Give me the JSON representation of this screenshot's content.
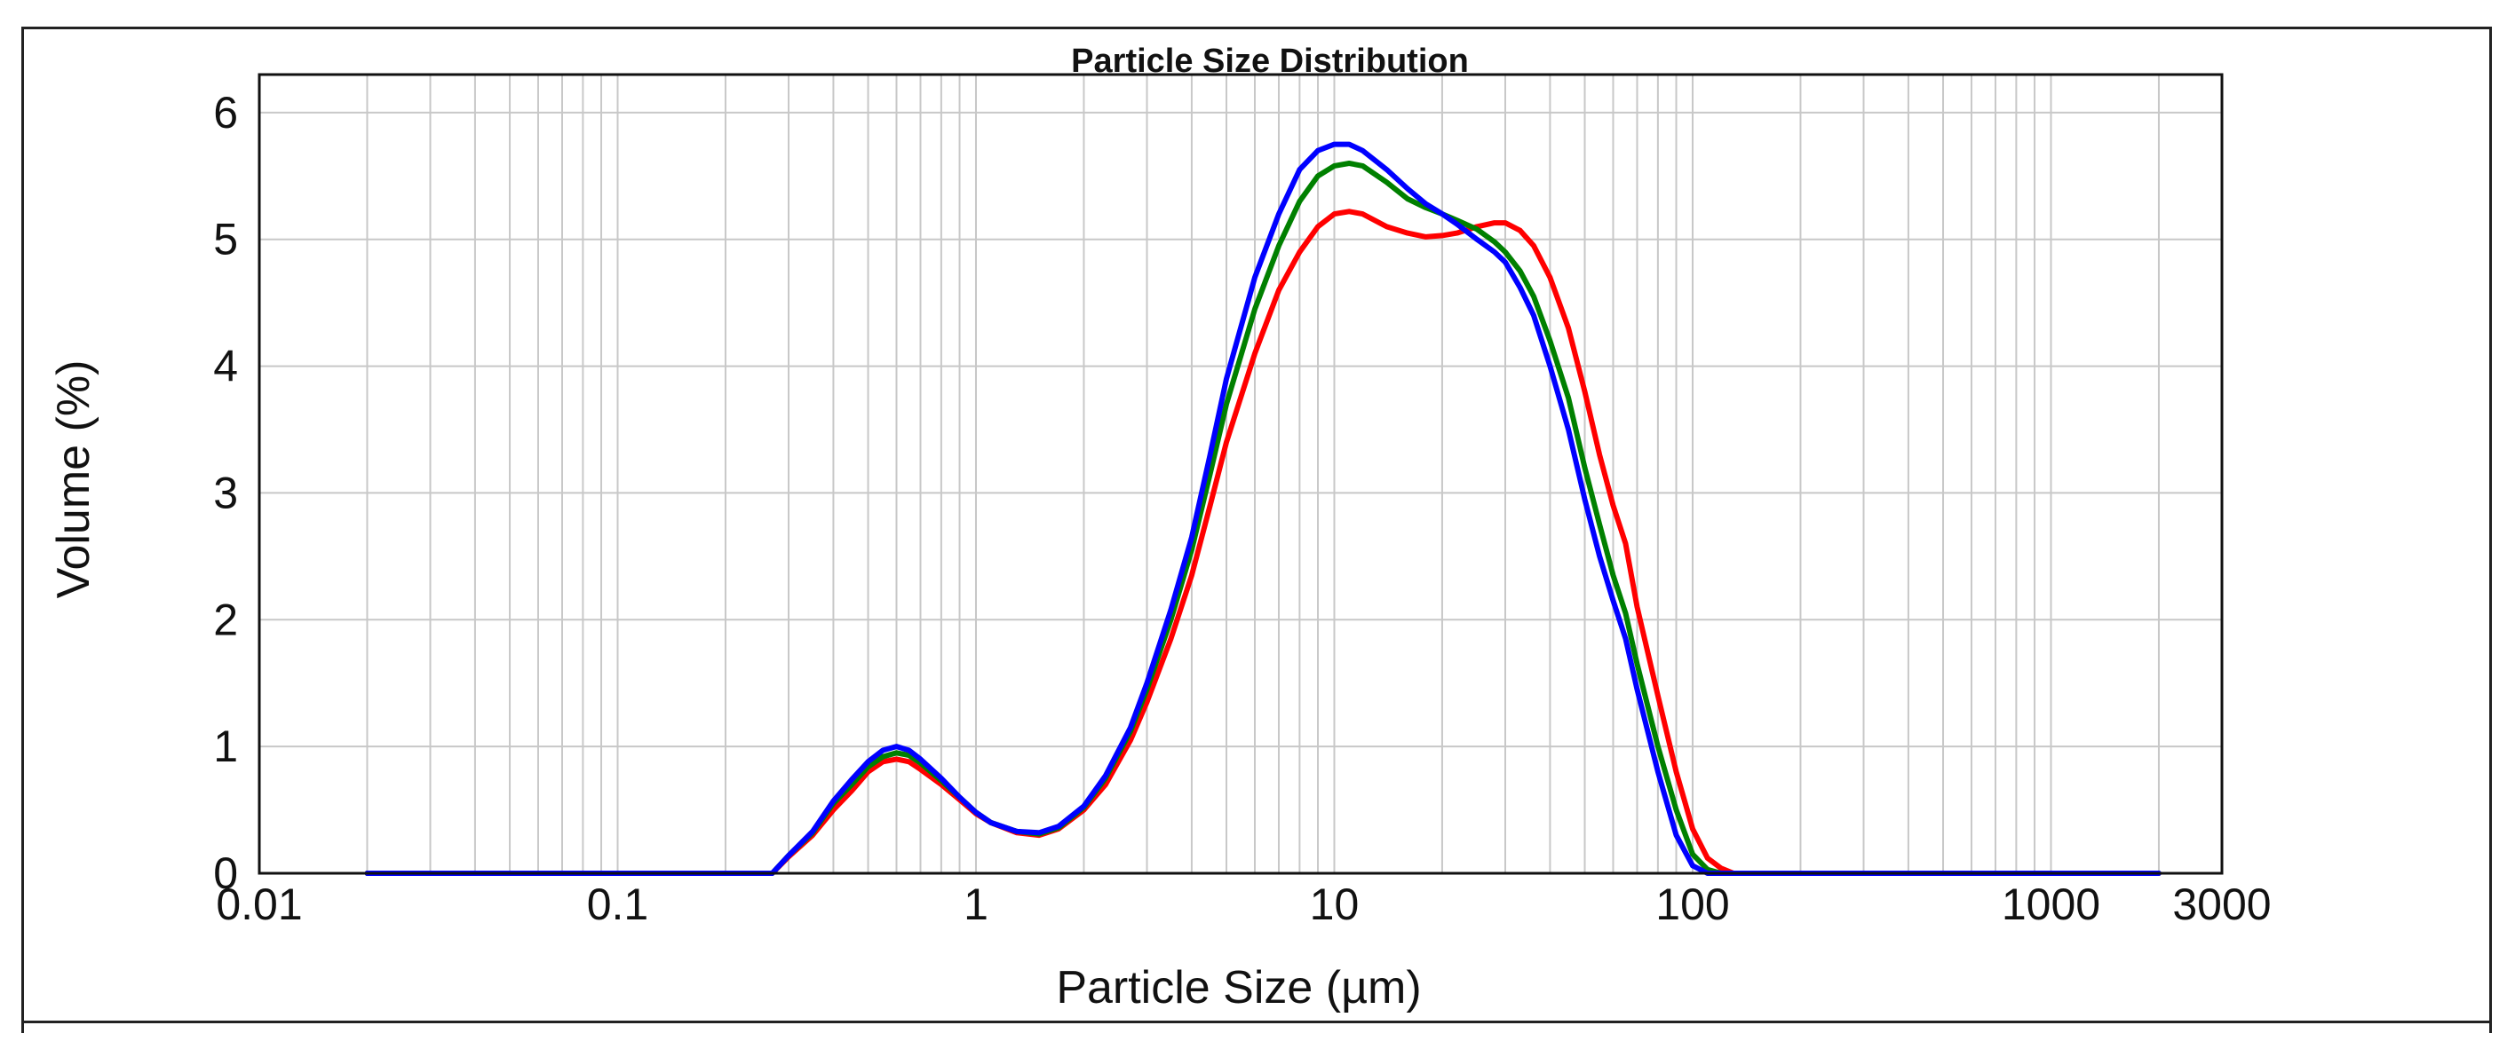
{
  "chart_data": {
    "type": "line",
    "title": "Particle Size Distribution",
    "xlabel": "Particle Size (µm)",
    "ylabel": "Volume (%)",
    "xscale": "log",
    "xlim": [
      0.01,
      3000
    ],
    "ylim": [
      0,
      6.3
    ],
    "x_ticks": [
      0.01,
      0.1,
      1,
      10,
      100,
      1000,
      3000
    ],
    "x_tick_labels": [
      "0.01",
      "0.1",
      "1",
      "10",
      "100",
      "1000",
      "3000"
    ],
    "y_ticks": [
      0,
      1,
      2,
      3,
      4,
      5,
      6
    ],
    "y_tick_labels": [
      "0",
      "1",
      "2",
      "3",
      "4",
      "5",
      "6"
    ],
    "grid": true,
    "series": [
      {
        "name": "red",
        "color": "#ff0000",
        "x": [
          0.02,
          0.05,
          0.1,
          0.2,
          0.27,
          0.3,
          0.35,
          0.4,
          0.45,
          0.5,
          0.55,
          0.6,
          0.65,
          0.7,
          0.8,
          0.9,
          1.0,
          1.1,
          1.3,
          1.5,
          1.7,
          2.0,
          2.3,
          2.7,
          3.0,
          3.5,
          4.0,
          4.5,
          5.0,
          6.0,
          7.0,
          8.0,
          9.0,
          10,
          11,
          12,
          14,
          16,
          18,
          20,
          22,
          25,
          28,
          30,
          33,
          36,
          40,
          45,
          50,
          55,
          60,
          65,
          70,
          80,
          90,
          100,
          110,
          120,
          130,
          150,
          300,
          1000,
          2000
        ],
        "y": [
          0,
          0,
          0,
          0,
          0,
          0.13,
          0.3,
          0.5,
          0.65,
          0.8,
          0.88,
          0.9,
          0.88,
          0.82,
          0.7,
          0.58,
          0.47,
          0.4,
          0.32,
          0.3,
          0.35,
          0.5,
          0.7,
          1.05,
          1.35,
          1.85,
          2.35,
          2.9,
          3.4,
          4.1,
          4.6,
          4.9,
          5.1,
          5.2,
          5.22,
          5.2,
          5.1,
          5.05,
          5.02,
          5.03,
          5.05,
          5.1,
          5.13,
          5.13,
          5.07,
          4.95,
          4.7,
          4.3,
          3.8,
          3.3,
          2.9,
          2.6,
          2.1,
          1.4,
          0.8,
          0.35,
          0.12,
          0.04,
          0,
          0,
          0,
          0,
          0
        ]
      },
      {
        "name": "green",
        "color": "#008000",
        "x": [
          0.02,
          0.05,
          0.1,
          0.2,
          0.27,
          0.3,
          0.35,
          0.4,
          0.45,
          0.5,
          0.55,
          0.6,
          0.65,
          0.7,
          0.8,
          0.9,
          1.0,
          1.1,
          1.3,
          1.5,
          1.7,
          2.0,
          2.3,
          2.7,
          3.0,
          3.5,
          4.0,
          4.5,
          5.0,
          6.0,
          7.0,
          8.0,
          9.0,
          10,
          11,
          12,
          14,
          16,
          18,
          20,
          22,
          25,
          28,
          30,
          33,
          36,
          40,
          45,
          50,
          55,
          60,
          65,
          70,
          80,
          90,
          100,
          110,
          120,
          150,
          300,
          1000,
          2000
        ],
        "y": [
          0,
          0,
          0,
          0,
          0,
          0.14,
          0.32,
          0.55,
          0.7,
          0.84,
          0.92,
          0.95,
          0.93,
          0.87,
          0.73,
          0.6,
          0.48,
          0.4,
          0.33,
          0.31,
          0.36,
          0.52,
          0.75,
          1.12,
          1.45,
          2.0,
          2.55,
          3.15,
          3.7,
          4.45,
          4.95,
          5.3,
          5.5,
          5.58,
          5.6,
          5.58,
          5.45,
          5.32,
          5.25,
          5.2,
          5.15,
          5.08,
          4.98,
          4.9,
          4.75,
          4.55,
          4.2,
          3.75,
          3.2,
          2.75,
          2.35,
          2.05,
          1.65,
          1.0,
          0.5,
          0.15,
          0.03,
          0,
          0,
          0,
          0,
          0
        ]
      },
      {
        "name": "blue",
        "color": "#0000ff",
        "x": [
          0.02,
          0.05,
          0.1,
          0.2,
          0.27,
          0.3,
          0.35,
          0.4,
          0.45,
          0.5,
          0.55,
          0.6,
          0.65,
          0.7,
          0.8,
          0.9,
          1.0,
          1.1,
          1.3,
          1.5,
          1.7,
          2.0,
          2.3,
          2.7,
          3.0,
          3.5,
          4.0,
          4.5,
          5.0,
          6.0,
          7.0,
          8.0,
          9.0,
          10,
          11,
          12,
          14,
          16,
          18,
          20,
          22,
          25,
          28,
          30,
          33,
          36,
          40,
          45,
          50,
          55,
          60,
          65,
          70,
          80,
          90,
          100,
          110,
          120,
          150,
          300,
          1000,
          2000
        ],
        "y": [
          0,
          0,
          0,
          0,
          0,
          0.14,
          0.33,
          0.57,
          0.74,
          0.88,
          0.97,
          1.0,
          0.97,
          0.9,
          0.75,
          0.6,
          0.48,
          0.4,
          0.33,
          0.32,
          0.37,
          0.53,
          0.77,
          1.15,
          1.5,
          2.08,
          2.65,
          3.3,
          3.9,
          4.7,
          5.2,
          5.55,
          5.7,
          5.75,
          5.75,
          5.7,
          5.55,
          5.4,
          5.28,
          5.2,
          5.12,
          5.0,
          4.9,
          4.82,
          4.62,
          4.4,
          4.0,
          3.5,
          2.95,
          2.5,
          2.15,
          1.85,
          1.45,
          0.8,
          0.3,
          0.06,
          0,
          0,
          0,
          0,
          0,
          0
        ]
      }
    ]
  }
}
